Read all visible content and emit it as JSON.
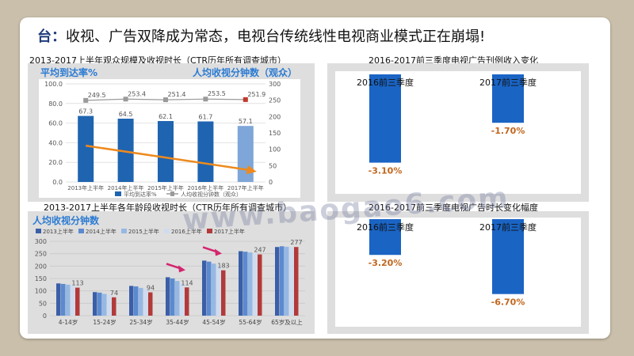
{
  "title": {
    "lead": "台：",
    "text": "收视、广告双降成为常态，电视台传统线性电视商业模式正在崩塌!"
  },
  "watermark": "www.baogao6.com",
  "panel_tl": {
    "caption": "2013-2017上半年观众规模及收视时长（CTR历年所有调查城市）",
    "left_heading": "平均到达率%",
    "right_heading": "人均收视分钟数（观众）",
    "chart_data": {
      "type": "bar",
      "categories": [
        "2013年上半年",
        "2014年上半年",
        "2015年上半年",
        "2016年上半年",
        "2017年上半年"
      ],
      "series": [
        {
          "name": "平均到达率%",
          "values": [
            67.3,
            64.5,
            62.1,
            61.7,
            57.1
          ],
          "color": "#1f64b0"
        },
        {
          "name": "人均收视分钟数（观众）",
          "values": [
            249.5,
            253.4,
            251.4,
            253.5,
            251.9
          ],
          "color": "#9a9a9a"
        }
      ],
      "ylim": [
        0,
        100
      ],
      "y2lim": [
        0,
        300
      ],
      "yticks": [
        "0.0",
        "20.0",
        "40.0",
        "60.0",
        "80.0",
        "100.0"
      ],
      "y2ticks": [
        "0",
        "50",
        "100",
        "150",
        "200",
        "250",
        "300"
      ],
      "legend": "bottom"
    }
  },
  "panel_tr": {
    "caption": "2016-2017前三季度电视广告刊例收入变化",
    "chart_data": {
      "type": "bar",
      "categories": [
        "2016前三季度",
        "2017前三季度"
      ],
      "values": [
        -3.1,
        -1.7
      ],
      "labels": [
        "-3.10%",
        "-1.70%"
      ],
      "ylim": [
        -3.5,
        0
      ]
    }
  },
  "panel_bl": {
    "caption": "2013-2017上半年各年龄段收视时长（CTR历年所有调查城市）",
    "heading": "人均收视分钟数",
    "chart_data": {
      "type": "bar",
      "categories": [
        "4-14岁",
        "15-24岁",
        "25-34岁",
        "35-44岁",
        "45-54岁",
        "55-64岁",
        "65岁及以上"
      ],
      "series": [
        {
          "name": "2013上半年",
          "values": [
            130,
            95,
            120,
            155,
            222,
            260,
            277
          ],
          "color": "#3a5fa8"
        },
        {
          "name": "2014上半年",
          "values": [
            128,
            93,
            118,
            150,
            218,
            258,
            280
          ],
          "color": "#5b8ad0"
        },
        {
          "name": "2015上半年",
          "values": [
            125,
            88,
            112,
            140,
            210,
            255,
            278
          ],
          "color": "#96b8e3"
        },
        {
          "name": "2016上半年",
          "values": [
            122,
            85,
            108,
            130,
            200,
            252,
            276
          ],
          "color": "#cfdcef"
        },
        {
          "name": "2017上半年",
          "values": [
            113,
            74,
            94,
            114,
            183,
            247,
            277
          ],
          "color": "#b23a3a"
        }
      ],
      "data_labels": [
        113,
        74,
        94,
        114,
        183,
        247,
        277
      ],
      "ylim": [
        0,
        300
      ],
      "yticks": [
        "0",
        "50",
        "100",
        "150",
        "200",
        "250",
        "300"
      ],
      "legend": "top"
    }
  },
  "panel_br": {
    "caption": "2016-2017前三季度电视广告时长变化幅度",
    "chart_data": {
      "type": "bar",
      "categories": [
        "2016前三季度",
        "2017前三季度"
      ],
      "values": [
        -3.2,
        -6.7
      ],
      "labels": [
        "-3.20%",
        "-6.70%"
      ],
      "ylim": [
        -7.5,
        0
      ]
    }
  }
}
